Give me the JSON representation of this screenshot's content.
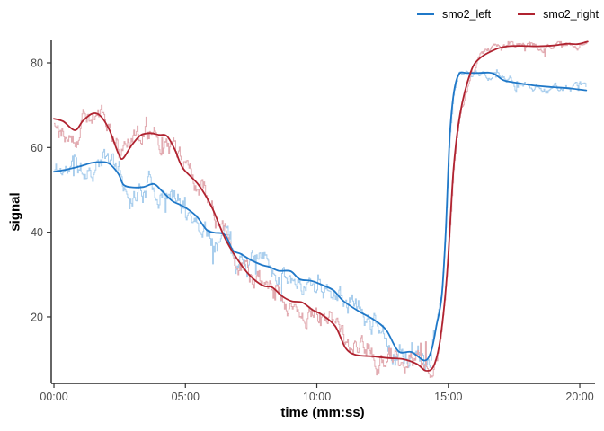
{
  "chart_data": {
    "type": "line",
    "title": "",
    "xlabel": "time (mm:ss)",
    "ylabel": "signal",
    "grid": false,
    "legend_position": "top-right",
    "axis_color": "#000000",
    "tick_color": "#333333",
    "tick_label_color": "#4d4d4d",
    "xlim": [
      -0.103,
      20.58
    ],
    "ylim": [
      4.3,
      85.3
    ],
    "x_ticks": [
      {
        "value": 0,
        "label": "00:00"
      },
      {
        "value": 5,
        "label": "05:00"
      },
      {
        "value": 10,
        "label": "10:00"
      },
      {
        "value": 15,
        "label": "15:00"
      },
      {
        "value": 20,
        "label": "20:00"
      }
    ],
    "y_ticks": [
      {
        "value": 20,
        "label": "20"
      },
      {
        "value": 40,
        "label": "40"
      },
      {
        "value": 60,
        "label": "60"
      },
      {
        "value": 80,
        "label": "80"
      }
    ],
    "series": [
      {
        "name": "smo2_left",
        "color": "#1f78c8",
        "raw_color": "#a9ceed",
        "noise_seed": 11,
        "smoothed_points": [
          [
            0,
            54.3
          ],
          [
            0.4,
            54.7
          ],
          [
            1,
            55.6
          ],
          [
            1.45,
            56.4
          ],
          [
            1.8,
            56.6
          ],
          [
            2.1,
            56.2
          ],
          [
            2.45,
            53.8
          ],
          [
            2.65,
            51.2
          ],
          [
            3,
            50.6
          ],
          [
            3.4,
            50.7
          ],
          [
            3.8,
            51.4
          ],
          [
            4.1,
            49.8
          ],
          [
            4.5,
            47.4
          ],
          [
            4.8,
            46.5
          ],
          [
            5.1,
            45.4
          ],
          [
            5.45,
            43.6
          ],
          [
            5.8,
            40.6
          ],
          [
            6.1,
            39.9
          ],
          [
            6.5,
            39.4
          ],
          [
            6.8,
            35.8
          ],
          [
            7.1,
            34.9
          ],
          [
            7.5,
            33.4
          ],
          [
            7.9,
            32.3
          ],
          [
            8.2,
            31.8
          ],
          [
            8.55,
            30.9
          ],
          [
            9,
            30.8
          ],
          [
            9.35,
            28.9
          ],
          [
            9.8,
            28.5
          ],
          [
            10.3,
            27.3
          ],
          [
            10.65,
            26.2
          ],
          [
            11,
            23.8
          ],
          [
            11.6,
            21.3
          ],
          [
            12.2,
            19.2
          ],
          [
            12.65,
            16.8
          ],
          [
            13.1,
            11.9
          ],
          [
            13.6,
            11.7
          ],
          [
            14.1,
            9.7
          ],
          [
            14.35,
            12
          ],
          [
            14.55,
            18
          ],
          [
            14.75,
            25
          ],
          [
            14.9,
            40
          ],
          [
            15.05,
            62
          ],
          [
            15.2,
            72.5
          ],
          [
            15.4,
            77.3
          ],
          [
            15.7,
            77.6
          ],
          [
            16.1,
            77.6
          ],
          [
            16.5,
            77.7
          ],
          [
            16.75,
            77.4
          ],
          [
            17.1,
            75.9
          ],
          [
            17.5,
            75.4
          ],
          [
            18.2,
            74.7
          ],
          [
            18.9,
            74.3
          ],
          [
            19.6,
            74
          ],
          [
            20.25,
            73.5
          ]
        ]
      },
      {
        "name": "smo2_right",
        "color": "#b02330",
        "raw_color": "#e2abb1",
        "noise_seed": 29,
        "smoothed_points": [
          [
            0,
            66.8
          ],
          [
            0.35,
            66.2
          ],
          [
            0.8,
            64.1
          ],
          [
            1.1,
            66.3
          ],
          [
            1.45,
            68
          ],
          [
            1.75,
            67.6
          ],
          [
            2.1,
            64.3
          ],
          [
            2.45,
            58.6
          ],
          [
            2.62,
            57.4
          ],
          [
            2.95,
            60.5
          ],
          [
            3.3,
            62.9
          ],
          [
            3.65,
            63.4
          ],
          [
            4,
            63
          ],
          [
            4.3,
            62.7
          ],
          [
            4.6,
            59.5
          ],
          [
            4.9,
            55.2
          ],
          [
            5.5,
            51.2
          ],
          [
            6,
            46
          ],
          [
            6.5,
            38.7
          ],
          [
            7,
            33.4
          ],
          [
            7.45,
            29.8
          ],
          [
            7.95,
            27.4
          ],
          [
            8.3,
            27
          ],
          [
            8.7,
            24.8
          ],
          [
            9.05,
            23.7
          ],
          [
            9.45,
            23.4
          ],
          [
            9.85,
            21.6
          ],
          [
            10.2,
            20.5
          ],
          [
            10.7,
            17.8
          ],
          [
            11.1,
            12.6
          ],
          [
            11.5,
            11
          ],
          [
            12.1,
            10.7
          ],
          [
            12.7,
            10.3
          ],
          [
            13.3,
            10
          ],
          [
            13.8,
            8.9
          ],
          [
            14.15,
            7.3
          ],
          [
            14.45,
            8.5
          ],
          [
            14.7,
            15
          ],
          [
            14.95,
            30
          ],
          [
            15.2,
            55
          ],
          [
            15.45,
            68
          ],
          [
            15.85,
            77.8
          ],
          [
            16.2,
            81.1
          ],
          [
            16.8,
            83.2
          ],
          [
            17.25,
            83.9
          ],
          [
            17.8,
            84
          ],
          [
            18.4,
            83.9
          ],
          [
            19,
            84.1
          ],
          [
            19.5,
            84.5
          ],
          [
            19.9,
            84.4
          ],
          [
            20.3,
            85
          ]
        ]
      }
    ],
    "raw_noise": {
      "sample_seconds": 2,
      "walk_persistence": 0.85,
      "walk_step": 1.9,
      "walk_clamp": 5.5,
      "spike_probability": 0.05,
      "spike_scale": 4.5,
      "quiet_amp_during_rise": 0.25,
      "quiet_amp_after_rise": 0.35,
      "rise_start_minutes": 14.45,
      "rise_end_minutes": 15.45
    }
  }
}
